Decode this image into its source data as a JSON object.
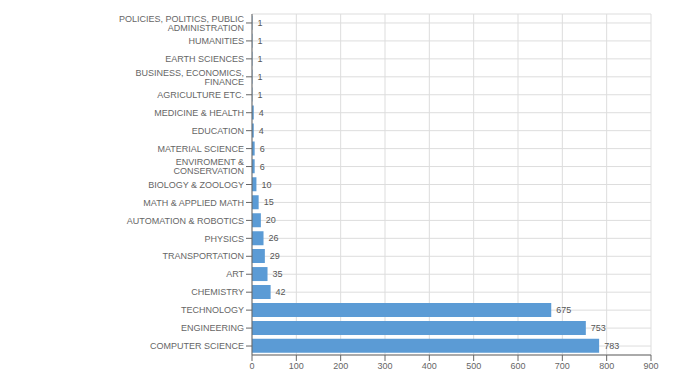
{
  "chart_data": {
    "type": "bar",
    "orientation": "horizontal",
    "categories": [
      "POLICIES, POLITICS, PUBLIC ADMINISTRATION",
      "HUMANITIES",
      "EARTH SCIENCES",
      "BUSINESS, ECONOMICS, FINANCE",
      "AGRICULTURE ETC.",
      "MEDICINE & HEALTH",
      "EDUCATION",
      "MATERIAL SCIENCE",
      "ENVIROMENT & CONSERVATION",
      "BIOLOGY & ZOOLOGY",
      "MATH & APPLIED MATH",
      "AUTOMATION & ROBOTICS",
      "PHYSICS",
      "TRANSPORTATION",
      "ART",
      "CHEMISTRY",
      "TECHNOLOGY",
      "ENGINEERING",
      "COMPUTER SCIENCE"
    ],
    "values": [
      1,
      1,
      1,
      1,
      1,
      4,
      4,
      6,
      6,
      10,
      15,
      20,
      26,
      29,
      35,
      42,
      675,
      753,
      783
    ],
    "color": "#5B9BD5",
    "xlim": [
      0,
      900
    ],
    "xticks": [
      0,
      100,
      200,
      300,
      400,
      500,
      600,
      700,
      800,
      900
    ],
    "grid": true,
    "data_labels": true
  }
}
